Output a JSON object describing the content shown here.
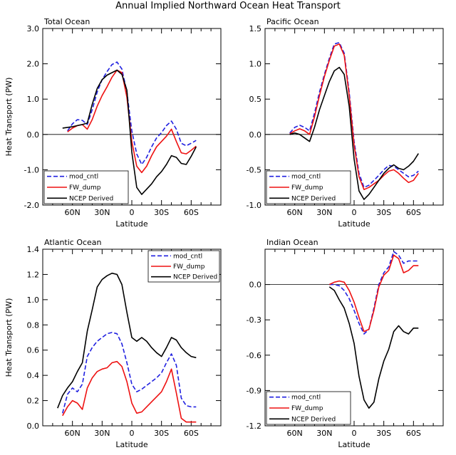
{
  "figure_title": "Annual Implied Northward Ocean Heat Transport",
  "colors": {
    "mod_cntl": "#2020e0",
    "FW_dump": "#ee1111",
    "NCEP Derived": "#000000"
  },
  "chart_data": [
    {
      "type": "line",
      "title": "Total Ocean",
      "xlabel": "Latitude",
      "ylabel": "Heat Transport (PW)",
      "xlim": [
        90,
        -90
      ],
      "ylim": [
        -2.0,
        3.0
      ],
      "xticks": [
        60,
        30,
        0,
        -30,
        -60
      ],
      "xtick_labels": [
        "60N",
        "30N",
        "0",
        "30S",
        "60S"
      ],
      "yticks": [
        -2.0,
        -1.0,
        0.0,
        1.0,
        2.0,
        3.0
      ],
      "ytick_labels": [
        "-2.0",
        "-1.0",
        "0.0",
        "1.0",
        "2.0",
        "3.0"
      ],
      "zero_line": true,
      "legend": "bottom-left",
      "series": [
        {
          "name": "mod_cntl",
          "style": "dashed",
          "x": [
            65,
            60,
            55,
            50,
            45,
            40,
            35,
            30,
            25,
            20,
            15,
            10,
            5,
            0,
            -5,
            -10,
            -15,
            -20,
            -25,
            -30,
            -35,
            -40,
            -45,
            -50,
            -55,
            -60,
            -65
          ],
          "y": [
            0.1,
            0.3,
            0.42,
            0.4,
            0.28,
            0.7,
            1.2,
            1.55,
            1.78,
            1.98,
            2.05,
            1.85,
            1.2,
            0.1,
            -0.55,
            -0.85,
            -0.65,
            -0.35,
            -0.1,
            0.05,
            0.25,
            0.38,
            0.15,
            -0.25,
            -0.32,
            -0.25,
            -0.17
          ]
        },
        {
          "name": "FW_dump",
          "style": "solid",
          "x": [
            65,
            60,
            55,
            50,
            45,
            40,
            35,
            30,
            25,
            20,
            15,
            10,
            5,
            0,
            -5,
            -10,
            -15,
            -20,
            -25,
            -30,
            -35,
            -40,
            -45,
            -50,
            -55,
            -60,
            -65
          ],
          "y": [
            0.07,
            0.18,
            0.25,
            0.28,
            0.15,
            0.42,
            0.8,
            1.1,
            1.35,
            1.62,
            1.82,
            1.75,
            1.05,
            -0.2,
            -0.9,
            -1.08,
            -0.9,
            -0.6,
            -0.35,
            -0.2,
            -0.05,
            0.15,
            -0.2,
            -0.52,
            -0.55,
            -0.45,
            -0.33
          ]
        },
        {
          "name": "NCEP Derived",
          "style": "solid",
          "x": [
            70,
            65,
            60,
            55,
            50,
            45,
            40,
            35,
            30,
            25,
            20,
            15,
            10,
            5,
            0,
            -5,
            -10,
            -15,
            -20,
            -25,
            -30,
            -35,
            -40,
            -45,
            -50,
            -55,
            -60,
            -65
          ],
          "y": [
            0.18,
            0.2,
            0.22,
            0.25,
            0.28,
            0.32,
            0.85,
            1.3,
            1.55,
            1.68,
            1.75,
            1.82,
            1.7,
            1.25,
            -0.5,
            -1.5,
            -1.7,
            -1.55,
            -1.4,
            -1.2,
            -1.05,
            -0.85,
            -0.6,
            -0.65,
            -0.82,
            -0.85,
            -0.62,
            -0.35
          ]
        }
      ]
    },
    {
      "type": "line",
      "title": "Pacific Ocean",
      "xlabel": "Latitude",
      "ylabel": "",
      "xlim": [
        90,
        -90
      ],
      "ylim": [
        -1.0,
        1.5
      ],
      "xticks": [
        60,
        30,
        0,
        -30,
        -60
      ],
      "xtick_labels": [
        "60N",
        "30N",
        "0",
        "30S",
        "60S"
      ],
      "yticks": [
        -1.0,
        -0.5,
        0.0,
        0.5,
        1.0,
        1.5
      ],
      "ytick_labels": [
        "-1.0",
        "-0.5",
        "0.0",
        "0.5",
        "1.0",
        "1.5"
      ],
      "zero_line": true,
      "legend": "bottom-left",
      "series": [
        {
          "name": "mod_cntl",
          "style": "dashed",
          "x": [
            65,
            60,
            55,
            50,
            45,
            40,
            35,
            30,
            25,
            20,
            15,
            10,
            5,
            0,
            -5,
            -10,
            -15,
            -20,
            -25,
            -30,
            -35,
            -40,
            -45,
            -50,
            -55,
            -60,
            -65
          ],
          "y": [
            0.02,
            0.1,
            0.13,
            0.1,
            0.05,
            0.3,
            0.6,
            0.85,
            1.08,
            1.28,
            1.3,
            1.15,
            0.6,
            -0.1,
            -0.55,
            -0.75,
            -0.72,
            -0.65,
            -0.58,
            -0.5,
            -0.44,
            -0.45,
            -0.5,
            -0.55,
            -0.6,
            -0.58,
            -0.52
          ]
        },
        {
          "name": "FW_dump",
          "style": "solid",
          "x": [
            65,
            60,
            55,
            50,
            45,
            40,
            35,
            30,
            25,
            20,
            15,
            10,
            5,
            0,
            -5,
            -10,
            -15,
            -20,
            -25,
            -30,
            -35,
            -40,
            -45,
            -50,
            -55,
            -60,
            -65
          ],
          "y": [
            0.01,
            0.05,
            0.08,
            0.05,
            0.0,
            0.25,
            0.55,
            0.82,
            1.05,
            1.25,
            1.28,
            1.12,
            0.55,
            -0.15,
            -0.6,
            -0.78,
            -0.75,
            -0.7,
            -0.65,
            -0.58,
            -0.52,
            -0.5,
            -0.55,
            -0.62,
            -0.68,
            -0.65,
            -0.55
          ]
        },
        {
          "name": "NCEP Derived",
          "style": "solid",
          "x": [
            65,
            60,
            55,
            50,
            45,
            40,
            35,
            30,
            25,
            20,
            15,
            10,
            5,
            0,
            -5,
            -10,
            -15,
            -20,
            -25,
            -30,
            -35,
            -40,
            -45,
            -50,
            -55,
            -60,
            -65
          ],
          "y": [
            0.0,
            0.02,
            0.0,
            -0.05,
            -0.1,
            0.1,
            0.35,
            0.55,
            0.75,
            0.9,
            0.95,
            0.85,
            0.4,
            -0.35,
            -0.8,
            -0.92,
            -0.85,
            -0.75,
            -0.65,
            -0.55,
            -0.48,
            -0.43,
            -0.48,
            -0.5,
            -0.45,
            -0.38,
            -0.27
          ]
        }
      ]
    },
    {
      "type": "line",
      "title": "Atlantic Ocean",
      "xlabel": "Latitude",
      "ylabel": "Heat Transport (PW)",
      "xlim": [
        90,
        -90
      ],
      "ylim": [
        0.0,
        1.4
      ],
      "xticks": [
        60,
        30,
        0,
        -30,
        -60
      ],
      "xtick_labels": [
        "60N",
        "30N",
        "0",
        "30S",
        "60S"
      ],
      "yticks": [
        0.0,
        0.2,
        0.4,
        0.6,
        0.8,
        1.0,
        1.2,
        1.4
      ],
      "ytick_labels": [
        "0.0",
        "0.2",
        "0.4",
        "0.6",
        "0.8",
        "1.0",
        "1.2",
        "1.4"
      ],
      "zero_line": false,
      "legend": "top-right",
      "series": [
        {
          "name": "mod_cntl",
          "style": "dashed",
          "x": [
            70,
            65,
            60,
            55,
            50,
            45,
            40,
            35,
            30,
            25,
            20,
            15,
            10,
            5,
            0,
            -5,
            -10,
            -15,
            -20,
            -25,
            -30,
            -35,
            -40,
            -45,
            -50,
            -55,
            -60,
            -65
          ],
          "y": [
            0.1,
            0.25,
            0.3,
            0.27,
            0.33,
            0.55,
            0.62,
            0.67,
            0.7,
            0.73,
            0.74,
            0.73,
            0.65,
            0.5,
            0.33,
            0.27,
            0.29,
            0.32,
            0.35,
            0.38,
            0.42,
            0.5,
            0.57,
            0.48,
            0.22,
            0.16,
            0.15,
            0.15
          ]
        },
        {
          "name": "FW_dump",
          "style": "solid",
          "x": [
            70,
            65,
            60,
            55,
            50,
            45,
            40,
            35,
            30,
            25,
            20,
            15,
            10,
            5,
            0,
            -5,
            -10,
            -15,
            -20,
            -25,
            -30,
            -35,
            -40,
            -45,
            -50,
            -55,
            -60,
            -65
          ],
          "y": [
            0.08,
            0.15,
            0.2,
            0.18,
            0.13,
            0.3,
            0.38,
            0.43,
            0.45,
            0.46,
            0.5,
            0.51,
            0.47,
            0.35,
            0.18,
            0.1,
            0.11,
            0.15,
            0.19,
            0.23,
            0.27,
            0.35,
            0.45,
            0.26,
            0.06,
            0.03,
            0.03,
            0.03
          ]
        },
        {
          "name": "NCEP Derived",
          "style": "solid",
          "x": [
            75,
            70,
            65,
            60,
            55,
            50,
            45,
            40,
            35,
            30,
            25,
            20,
            15,
            10,
            5,
            0,
            -5,
            -10,
            -15,
            -20,
            -25,
            -30,
            -35,
            -40,
            -45,
            -50,
            -55,
            -60,
            -65
          ],
          "y": [
            0.14,
            0.24,
            0.3,
            0.35,
            0.43,
            0.5,
            0.75,
            0.92,
            1.1,
            1.16,
            1.19,
            1.21,
            1.2,
            1.12,
            0.9,
            0.7,
            0.67,
            0.7,
            0.67,
            0.62,
            0.58,
            0.55,
            0.62,
            0.7,
            0.68,
            0.62,
            0.58,
            0.55,
            0.54
          ]
        }
      ]
    },
    {
      "type": "line",
      "title": "Indian Ocean",
      "xlabel": "Latitude",
      "ylabel": "",
      "xlim": [
        90,
        -90
      ],
      "ylim": [
        -1.2,
        0.3
      ],
      "xticks": [
        60,
        30,
        0,
        -30,
        -60
      ],
      "xtick_labels": [
        "60N",
        "30N",
        "0",
        "30S",
        "60S"
      ],
      "yticks": [
        -1.2,
        -0.9,
        -0.6,
        -0.3,
        0.0
      ],
      "ytick_labels": [
        "-1.2",
        "-0.9",
        "-0.6",
        "-0.3",
        "0.0"
      ],
      "zero_line": true,
      "legend": "bottom-left",
      "series": [
        {
          "name": "mod_cntl",
          "style": "dashed",
          "x": [
            25,
            20,
            15,
            10,
            5,
            0,
            -5,
            -10,
            -15,
            -20,
            -25,
            -30,
            -35,
            -40,
            -45,
            -50,
            -55,
            -60,
            -65
          ],
          "y": [
            0.0,
            0.0,
            -0.01,
            -0.05,
            -0.12,
            -0.22,
            -0.33,
            -0.42,
            -0.38,
            -0.2,
            0.0,
            0.1,
            0.15,
            0.28,
            0.25,
            0.18,
            0.2,
            0.2,
            0.2
          ]
        },
        {
          "name": "FW_dump",
          "style": "solid",
          "x": [
            25,
            20,
            15,
            10,
            5,
            0,
            -5,
            -10,
            -15,
            -20,
            -25,
            -30,
            -35,
            -40,
            -45,
            -50,
            -55,
            -60,
            -65
          ],
          "y": [
            0.0,
            0.02,
            0.03,
            0.02,
            -0.05,
            -0.15,
            -0.28,
            -0.4,
            -0.38,
            -0.22,
            -0.02,
            0.08,
            0.12,
            0.25,
            0.22,
            0.1,
            0.12,
            0.16,
            0.16
          ]
        },
        {
          "name": "NCEP Derived",
          "style": "solid",
          "x": [
            25,
            20,
            15,
            10,
            5,
            0,
            -5,
            -10,
            -15,
            -20,
            -25,
            -30,
            -35,
            -40,
            -45,
            -50,
            -55,
            -60,
            -65
          ],
          "y": [
            -0.02,
            -0.05,
            -0.13,
            -0.2,
            -0.33,
            -0.5,
            -0.78,
            -0.98,
            -1.05,
            -1.0,
            -0.8,
            -0.65,
            -0.55,
            -0.4,
            -0.35,
            -0.4,
            -0.42,
            -0.37,
            -0.37
          ]
        }
      ]
    }
  ]
}
